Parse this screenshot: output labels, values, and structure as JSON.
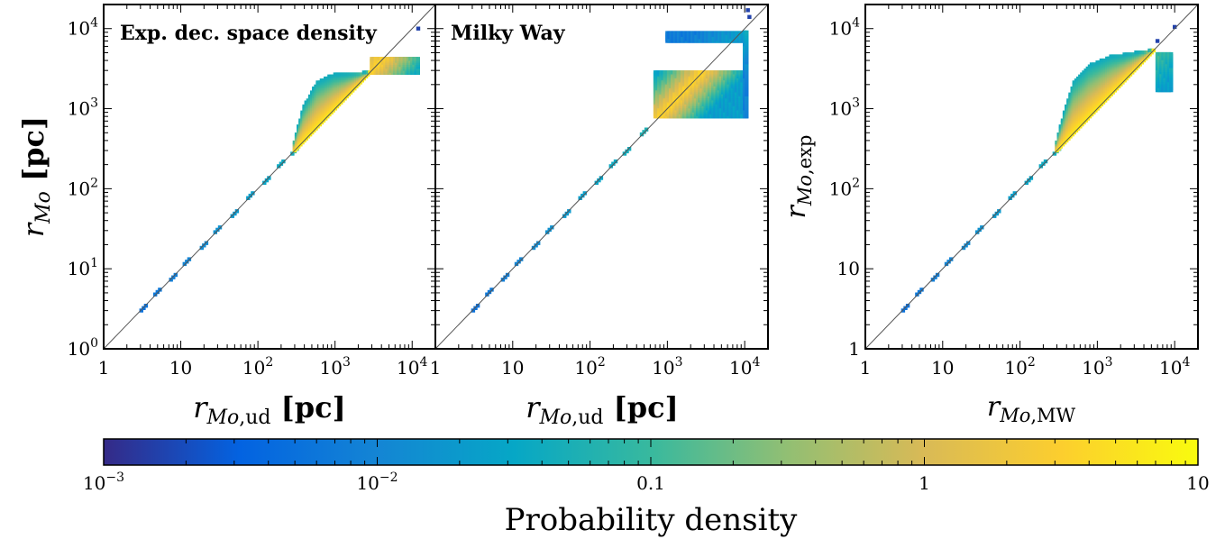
{
  "chart_data": [
    {
      "type": "heatmap",
      "title": "Exp. dec. space density",
      "xlabel": "r_Mo,ud [pc]",
      "ylabel": "r_Mo [pc]",
      "xscale": "log",
      "yscale": "log",
      "xlim": [
        1,
        20000
      ],
      "ylim": [
        1,
        20000
      ],
      "xticks": [
        "1",
        "10",
        "10^2",
        "10^3",
        "10^4"
      ],
      "yticks": [
        "10^0",
        "10^1",
        "10^2",
        "10^3",
        "10^4"
      ],
      "diagonal": true,
      "spine": [
        [
          3.3,
          3.3
        ],
        [
          5,
          5
        ],
        [
          8,
          8
        ],
        [
          12,
          12
        ],
        [
          20,
          20
        ],
        [
          30,
          30
        ],
        [
          50,
          50
        ],
        [
          80,
          80
        ],
        [
          130,
          130
        ],
        [
          200,
          200
        ],
        [
          300,
          300
        ]
      ],
      "plume": {
        "x_range": [
          300,
          3000
        ],
        "upper": [
          [
            300,
            400
          ],
          [
            400,
            1100
          ],
          [
            600,
            2200
          ],
          [
            1000,
            2700
          ],
          [
            2000,
            2800
          ],
          [
            3000,
            2900
          ]
        ],
        "lower_follows_diagonal": true
      },
      "plateau": {
        "x_range": [
          3000,
          12000
        ],
        "y_range": [
          2800,
          4200
        ]
      },
      "outliers": [
        [
          12000,
          10000
        ]
      ]
    },
    {
      "type": "heatmap",
      "title": "Milky Way",
      "xlabel": "r_Mo,ud [pc]",
      "ylabel": "",
      "xscale": "log",
      "yscale": "log",
      "xlim": [
        1,
        20000
      ],
      "ylim": [
        1,
        20000
      ],
      "xticks": [
        "1",
        "10",
        "10^2",
        "10^3",
        "10^4"
      ],
      "yticks": [],
      "diagonal": true,
      "spine": [
        [
          3.3,
          3.3
        ],
        [
          5,
          5
        ],
        [
          8,
          8
        ],
        [
          12,
          12
        ],
        [
          20,
          20
        ],
        [
          30,
          30
        ],
        [
          50,
          50
        ],
        [
          80,
          80
        ],
        [
          130,
          130
        ],
        [
          200,
          200
        ],
        [
          300,
          300
        ],
        [
          500,
          500
        ]
      ],
      "upper_band": {
        "x_range": [
          1000,
          11000
        ],
        "y_range": [
          7000,
          9000
        ]
      },
      "lower_block": {
        "x_range": [
          700,
          11000
        ],
        "y_range": [
          800,
          3000
        ]
      },
      "right_column": {
        "x_range": [
          10000,
          11000
        ],
        "y_range": [
          800,
          9000
        ]
      },
      "outliers": [
        [
          11000,
          17000
        ],
        [
          11500,
          14000
        ]
      ]
    },
    {
      "type": "heatmap",
      "title": "",
      "xlabel": "r_Mo,MW",
      "ylabel": "r_Mo,exp",
      "xscale": "log",
      "yscale": "log",
      "xlim": [
        1,
        20000
      ],
      "ylim": [
        1,
        20000
      ],
      "xticks": [
        "1",
        "10",
        "10^2",
        "10^3",
        "10^4"
      ],
      "yticks": [
        "1",
        "10",
        "10^2",
        "10^3",
        "10^4"
      ],
      "diagonal": true,
      "spine": [
        [
          3.3,
          3.3
        ],
        [
          5,
          5
        ],
        [
          8,
          8
        ],
        [
          12,
          12
        ],
        [
          20,
          20
        ],
        [
          30,
          30
        ],
        [
          50,
          50
        ],
        [
          80,
          80
        ],
        [
          130,
          130
        ],
        [
          200,
          200
        ],
        [
          300,
          300
        ]
      ],
      "plume": {
        "x_range": [
          300,
          6000
        ],
        "upper": [
          [
            300,
            400
          ],
          [
            400,
            1100
          ],
          [
            500,
            2200
          ],
          [
            800,
            3500
          ],
          [
            1500,
            4500
          ],
          [
            3000,
            5000
          ],
          [
            5500,
            5500
          ]
        ],
        "lower_follows_diagonal": true
      },
      "tail": {
        "x_range": [
          6000,
          9000
        ],
        "y_range": [
          1700,
          5000
        ]
      },
      "outliers": [
        [
          6000,
          7000
        ],
        [
          10000,
          10500
        ]
      ]
    }
  ],
  "colorbar": {
    "label": "Probability density",
    "scale": "log",
    "range": [
      0.001,
      10
    ],
    "ticks": [
      "10^-3",
      "10^-2",
      "0.1",
      "1",
      "10"
    ],
    "colors": [
      "#352a87",
      "#0363e1",
      "#1485d4",
      "#06a7c6",
      "#38b99e",
      "#92bf73",
      "#d9ba56",
      "#fcce2e",
      "#f9fb0e"
    ]
  }
}
